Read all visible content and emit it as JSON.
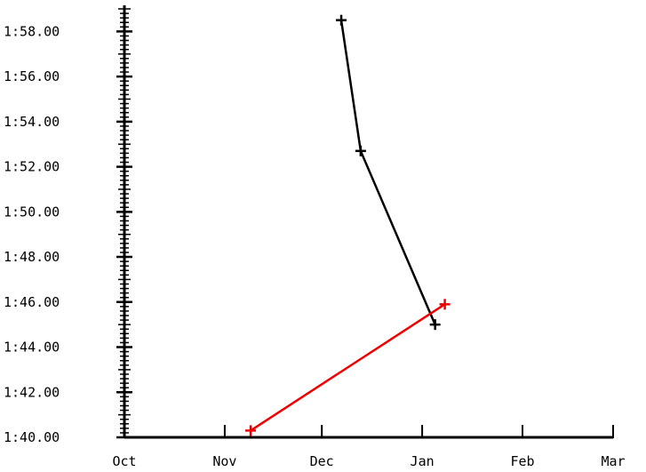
{
  "chart_data": {
    "type": "line",
    "title": "",
    "xlabel": "",
    "ylabel": "",
    "x_ticks": [
      "Oct",
      "Nov",
      "Dec",
      "Jan",
      "Feb",
      "Mar"
    ],
    "y_ticks": [
      "1:40.00",
      "1:42.00",
      "1:44.00",
      "1:46.00",
      "1:48.00",
      "1:50.00",
      "1:52.00",
      "1:54.00",
      "1:56.00",
      "1:58.00"
    ],
    "x_range": [
      "Oct 1",
      "Mar 1"
    ],
    "y_range": [
      "1:40.00",
      "1:59.00"
    ],
    "grid": false,
    "series": [
      {
        "color": "#000000",
        "marker": "plus",
        "points": [
          {
            "x": "Dec 7",
            "y": "1:58.50"
          },
          {
            "x": "Dec 13",
            "y": "1:52.70"
          },
          {
            "x": "Jan 5",
            "y": "1:45.00"
          }
        ]
      },
      {
        "color": "#ee0000",
        "marker": "plus",
        "points": [
          {
            "x": "Nov 9",
            "y": "1:40.30"
          },
          {
            "x": "Jan 8",
            "y": "1:45.90"
          }
        ]
      }
    ]
  }
}
